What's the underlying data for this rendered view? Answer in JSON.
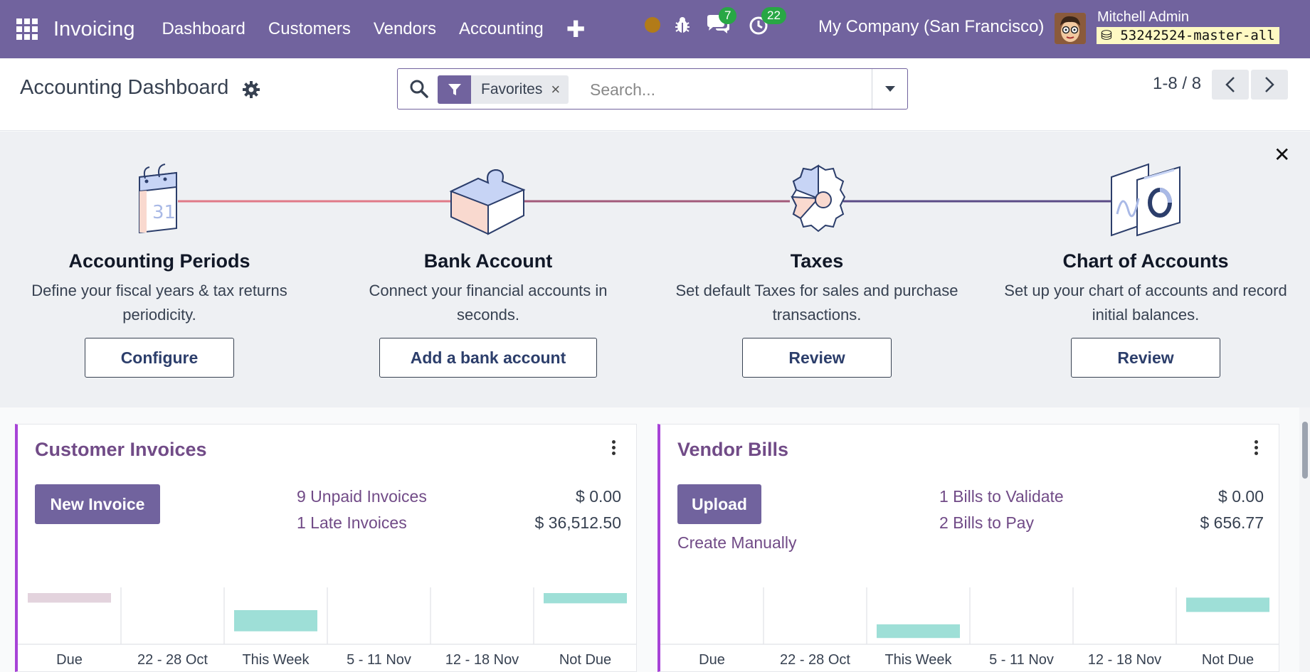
{
  "navbar": {
    "app_name": "Invoicing",
    "menu": [
      "Dashboard",
      "Customers",
      "Vendors",
      "Accounting"
    ],
    "new_symbol": "✚",
    "messages_count": "7",
    "activities_count": "22",
    "company": "My Company (San Francisco)",
    "user_name": "Mitchell Admin",
    "database": "53242524-master-all"
  },
  "control": {
    "title": "Accounting Dashboard",
    "facet_label": "Favorites",
    "facet_remove": "×",
    "search_placeholder": "Search...",
    "pager": "1-8 / 8"
  },
  "banner": {
    "close": "✕",
    "steps": [
      {
        "title": "Accounting Periods",
        "line1": "Define your fiscal years & tax returns",
        "line2": "periodicity.",
        "button": "Configure"
      },
      {
        "title": "Bank Account",
        "line1": "Connect your financial accounts in",
        "line2": "seconds.",
        "button": "Add a bank account"
      },
      {
        "title": "Taxes",
        "line1": "Set default Taxes for sales and purchase",
        "line2": "transactions.",
        "button": "Review"
      },
      {
        "title": "Chart of Accounts",
        "line1": "Set up your chart of accounts and record",
        "line2": "initial balances.",
        "button": "Review"
      }
    ],
    "calendar_number": "31"
  },
  "customer_invoices": {
    "title": "Customer Invoices",
    "button": "New Invoice",
    "stats": [
      {
        "label": "9 Unpaid Invoices",
        "amount": "$ 0.00"
      },
      {
        "label": "1 Late Invoices",
        "amount": "$ 36,512.50"
      }
    ],
    "chart": {
      "categories": [
        "Due",
        "22 - 28 Oct",
        "This Week",
        "5 - 11 Nov",
        "12 - 18 Nov",
        "Not Due"
      ],
      "levels": [
        0.28,
        0,
        0.62,
        0,
        0,
        0.3
      ],
      "offsets": [
        0.1,
        0,
        0.4,
        0,
        0,
        0.1
      ],
      "colors": [
        "#e3d3dd",
        null,
        "#9edfd7",
        null,
        null,
        "#9edfd7"
      ]
    }
  },
  "vendor_bills": {
    "title": "Vendor Bills",
    "button": "Upload",
    "create_link": "Create Manually",
    "stats": [
      {
        "label": "1 Bills to Validate",
        "amount": "$ 0.00"
      },
      {
        "label": "2 Bills to Pay",
        "amount": "$ 656.77"
      }
    ],
    "chart": {
      "categories": [
        "Due",
        "22 - 28 Oct",
        "This Week",
        "5 - 11 Nov",
        "12 - 18 Nov",
        "Not Due"
      ],
      "levels": [
        0,
        0,
        0.4,
        0,
        0,
        0.42
      ],
      "offsets": [
        0,
        0,
        0.65,
        0,
        0,
        0.18
      ],
      "colors": [
        null,
        null,
        "#9edfd7",
        null,
        null,
        "#9edfd7"
      ]
    }
  }
}
